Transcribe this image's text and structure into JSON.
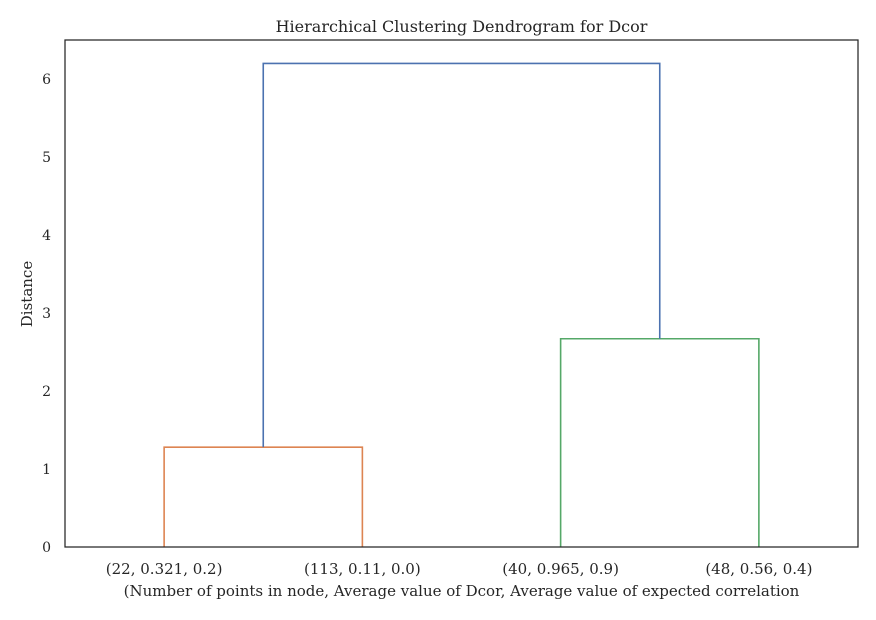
{
  "chart_data": {
    "type": "dendrogram",
    "title": "Hierarchical Clustering Dendrogram for Dcor",
    "xlabel": "(Number of points in node, Average value of Dcor, Average value of expected correlation",
    "ylabel": "Distance",
    "ylim": [
      0,
      6.5
    ],
    "yticks": [
      0,
      1,
      2,
      3,
      4,
      5,
      6
    ],
    "grid": false,
    "leaves": [
      "(22, 0.321, 0.2)",
      "(113, 0.11, 0.0)",
      "(40, 0.965, 0.9)",
      "(48, 0.56, 0.4)"
    ],
    "links": [
      {
        "left_pos": 0,
        "right_pos": 1,
        "left_height": 0,
        "right_height": 0,
        "height": 1.28,
        "color": "#dd8452"
      },
      {
        "left_pos": 2,
        "right_pos": 3,
        "left_height": 0,
        "right_height": 0,
        "height": 2.67,
        "color": "#55a868"
      },
      {
        "left_pos": 0.5,
        "right_pos": 2.5,
        "left_height": 1.28,
        "right_height": 2.67,
        "height": 6.2,
        "color": "#4c72b0"
      }
    ],
    "frame_color": "#262626"
  }
}
